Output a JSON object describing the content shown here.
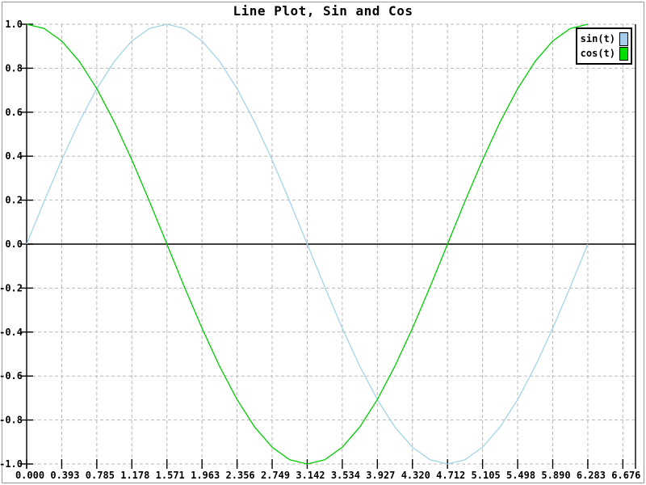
{
  "window": {
    "background": "#ffffff",
    "frame_border_color": "#9c9c9c"
  },
  "chart_data": {
    "type": "line",
    "title": "Line Plot, Sin and Cos",
    "xlabel": "",
    "ylabel": "",
    "xlim": [
      0,
      6.82
    ],
    "ylim": [
      -1.0,
      1.0
    ],
    "grid": "dashed",
    "grid_color": "#b8b8b8",
    "axis_color": "#000000",
    "zero_axis_line": true,
    "legend_position": "top-right",
    "x": [
      0.0,
      0.1963,
      0.3927,
      0.589,
      0.7854,
      0.9817,
      1.1781,
      1.3744,
      1.5708,
      1.7671,
      1.9635,
      2.1598,
      2.3562,
      2.5525,
      2.7489,
      2.9452,
      3.1416,
      3.3379,
      3.5343,
      3.7306,
      3.927,
      4.1233,
      4.3197,
      4.516,
      4.7124,
      4.9087,
      5.1051,
      5.3014,
      5.4978,
      5.6941,
      5.8905,
      6.0868,
      6.2832
    ],
    "series": [
      {
        "name": "sin(t)",
        "color": "#a2d4e6",
        "swatch_color": "#a6cdee",
        "values": [
          0.0,
          0.1951,
          0.3827,
          0.5556,
          0.7071,
          0.8315,
          0.9239,
          0.9808,
          1.0,
          0.9808,
          0.9239,
          0.8315,
          0.7071,
          0.5556,
          0.3827,
          0.1951,
          0.0,
          -0.1951,
          -0.3827,
          -0.5556,
          -0.7071,
          -0.8315,
          -0.9239,
          -0.9808,
          -1.0,
          -0.9808,
          -0.9239,
          -0.8315,
          -0.7071,
          -0.5556,
          -0.3827,
          -0.1951,
          0.0
        ]
      },
      {
        "name": "cos(t)",
        "color": "#00cc00",
        "swatch_color": "#00dd00",
        "values": [
          1.0,
          0.9808,
          0.9239,
          0.8315,
          0.7071,
          0.5556,
          0.3827,
          0.1951,
          0.0,
          -0.1951,
          -0.3827,
          -0.5556,
          -0.7071,
          -0.8315,
          -0.9239,
          -0.9808,
          -1.0,
          -0.9808,
          -0.9239,
          -0.8315,
          -0.7071,
          -0.5556,
          -0.3827,
          -0.1951,
          0.0,
          0.1951,
          0.3827,
          0.5556,
          0.7071,
          0.8315,
          0.9239,
          0.9808,
          1.0
        ]
      }
    ],
    "x_tick_values": [
      0.0,
      0.3927,
      0.7854,
      1.1781,
      1.5708,
      1.9635,
      2.3562,
      2.7489,
      3.1416,
      3.5343,
      3.927,
      4.3197,
      4.7124,
      5.1051,
      5.4978,
      5.8905,
      6.2832,
      6.6759
    ],
    "x_tick_labels": [
      "0.000",
      "0.393",
      "0.785",
      "1.178",
      "1.571",
      "1.963",
      "2.356",
      "2.749",
      "3.142",
      "3.534",
      "3.927",
      "4.320",
      "4.712",
      "5.105",
      "5.498",
      "5.890",
      "6.283",
      "6.676"
    ],
    "y_tick_values": [
      1.0,
      0.8,
      0.6,
      0.4,
      0.2,
      0.0,
      -0.2,
      -0.4,
      -0.6,
      -0.8,
      -1.0
    ],
    "y_tick_labels": [
      "1.0",
      "0.8",
      "0.6",
      "0.4",
      "0.2",
      "0.0",
      "-0.2",
      "-0.4",
      "-0.6",
      "-0.8",
      "-1.0"
    ]
  }
}
